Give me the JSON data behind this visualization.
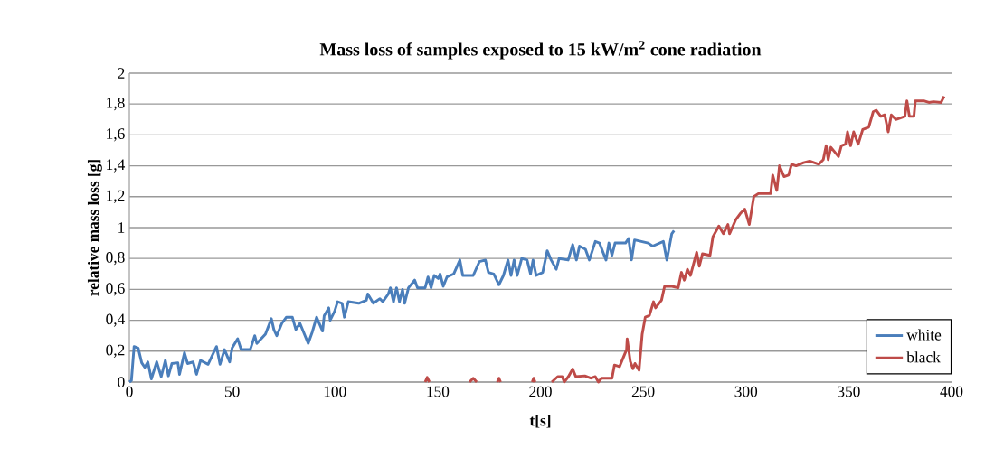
{
  "chart_data": {
    "type": "line",
    "title": "Mass loss of samples exposed to 15 kW/m$^{2}$ cone radiation",
    "xlabel": "t[s]",
    "ylabel": "relative mass loss [g]",
    "xlim": [
      0,
      400
    ],
    "xticks": [
      0,
      50,
      100,
      150,
      200,
      250,
      300,
      350,
      400
    ],
    "ylim": [
      0,
      2
    ],
    "yticks": [
      {
        "value": 0,
        "label": "0"
      },
      {
        "value": 0.2,
        "label": "0,2"
      },
      {
        "value": 0.4,
        "label": "0,4"
      },
      {
        "value": 0.6,
        "label": "0,6"
      },
      {
        "value": 0.8,
        "label": "0,8"
      },
      {
        "value": 1,
        "label": "1"
      },
      {
        "value": 1.2,
        "label": "1,2"
      },
      {
        "value": 1.4,
        "label": "1,4"
      },
      {
        "value": 1.6,
        "label": "1,6"
      },
      {
        "value": 1.8,
        "label": "1,8"
      },
      {
        "value": 2,
        "label": "2"
      }
    ],
    "grid": "y",
    "legend": "bottom right",
    "marker": "none",
    "line_style": "solid",
    "series": [
      {
        "name": "white",
        "color": "#4a7ebb",
        "x": [
          0,
          1,
          2.3,
          4.3,
          6,
          7.5,
          9,
          10.7,
          13.3,
          15.5,
          17.5,
          19,
          20.7,
          23.6,
          24.4,
          26.8,
          28.3,
          31,
          32.7,
          34.6,
          38.3,
          42.4,
          44.1,
          46.3,
          48.8,
          50,
          52.7,
          54.4,
          58.8,
          61,
          62,
          66.2,
          69.1,
          70.3,
          71.7,
          74.2,
          76.4,
          79.3,
          81,
          83,
          87,
          88.9,
          91.1,
          94,
          94.8,
          97,
          97.7,
          99.9,
          101.3,
          103.5,
          104.6,
          106.5,
          111.6,
          115.3,
          116,
          118.7,
          121.9,
          123.3,
          126,
          127,
          128.5,
          130,
          131.4,
          132.9,
          133.9,
          135.8,
          138.8,
          140.2,
          143.9,
          145.3,
          146.8,
          148.3,
          150.3,
          151.2,
          152.7,
          154.5,
          157.8,
          160.8,
          162.2,
          167.3,
          170.3,
          173.2,
          174.7,
          177.3,
          179.8,
          182,
          184.2,
          185.7,
          187.2,
          188.7,
          190.9,
          193.5,
          195.2,
          196.4,
          197.9,
          201.1,
          203.3,
          205.2,
          207.7,
          209.1,
          213.5,
          215.7,
          217.5,
          219,
          221.9,
          223.8,
          226.7,
          228.7,
          231.9,
          233.3,
          234.8,
          236.3,
          241.4,
          242.9,
          244.3,
          245.8,
          252.4,
          254.6,
          259.8,
          261.5,
          263.9,
          265
        ],
        "values": [
          0,
          0.01,
          0.23,
          0.22,
          0.125,
          0.095,
          0.13,
          0.02,
          0.13,
          0.035,
          0.14,
          0.04,
          0.12,
          0.125,
          0.05,
          0.19,
          0.12,
          0.13,
          0.05,
          0.14,
          0.115,
          0.23,
          0.115,
          0.21,
          0.13,
          0.22,
          0.28,
          0.21,
          0.21,
          0.3,
          0.25,
          0.31,
          0.41,
          0.34,
          0.3,
          0.38,
          0.42,
          0.42,
          0.34,
          0.38,
          0.25,
          0.32,
          0.42,
          0.33,
          0.43,
          0.48,
          0.4,
          0.46,
          0.52,
          0.51,
          0.42,
          0.52,
          0.51,
          0.53,
          0.57,
          0.51,
          0.54,
          0.52,
          0.57,
          0.61,
          0.52,
          0.61,
          0.52,
          0.6,
          0.51,
          0.61,
          0.66,
          0.61,
          0.61,
          0.68,
          0.61,
          0.69,
          0.67,
          0.7,
          0.62,
          0.68,
          0.7,
          0.79,
          0.69,
          0.69,
          0.78,
          0.79,
          0.71,
          0.7,
          0.63,
          0.69,
          0.79,
          0.69,
          0.79,
          0.69,
          0.8,
          0.79,
          0.7,
          0.79,
          0.69,
          0.71,
          0.85,
          0.79,
          0.73,
          0.8,
          0.79,
          0.89,
          0.79,
          0.88,
          0.86,
          0.79,
          0.91,
          0.9,
          0.79,
          0.9,
          0.82,
          0.9,
          0.9,
          0.93,
          0.79,
          0.92,
          0.9,
          0.88,
          0.91,
          0.79,
          0.96,
          0.98
        ]
      },
      {
        "name": "black",
        "color": "#be4b48",
        "x": [
          143.9,
          144.9,
          146,
          147,
          165.5,
          167.3,
          169,
          170,
          179,
          179.8,
          180.6,
          181,
          196,
          196.7,
          197.4,
          198,
          205.5,
          208.4,
          210.6,
          211.6,
          213.6,
          215.7,
          217.2,
          221.6,
          224.5,
          226.7,
          228.2,
          229.7,
          234.8,
          236,
          238.5,
          241.9,
          242.2,
          243.7,
          245,
          246,
          248,
          249.5,
          251,
          253,
          255,
          256,
          258.9,
          260.4,
          264,
          267,
          268.6,
          270,
          271.5,
          273,
          276,
          277.3,
          278.8,
          282.5,
          283.9,
          286.8,
          289,
          291.2,
          292,
          295,
          297.2,
          299.4,
          301.6,
          303.8,
          306,
          309,
          312,
          313,
          315,
          316.3,
          318.5,
          320.7,
          322.2,
          324.4,
          328,
          331,
          335.4,
          337.6,
          339,
          340,
          341.3,
          345,
          346.4,
          348.4,
          349.4,
          350.9,
          352.4,
          354.6,
          356.8,
          359.7,
          361.9,
          363.4,
          365.6,
          367.5,
          369.2,
          370.7,
          372.9,
          377.3,
          378.3,
          379.5,
          381.7,
          382.4,
          386.8,
          389,
          391.2,
          394.9,
          396.4
        ],
        "values": [
          0,
          0.03,
          0,
          null,
          0,
          0.025,
          0,
          null,
          0,
          0.025,
          0,
          null,
          0,
          0.025,
          0,
          null,
          0,
          0.035,
          0.035,
          0,
          0.035,
          0.085,
          0.035,
          0.04,
          0.025,
          0.035,
          0,
          0.025,
          0.025,
          0.11,
          0.1,
          0.21,
          0.28,
          0.135,
          0.086,
          0.12,
          0.076,
          0.31,
          0.42,
          0.43,
          0.52,
          0.48,
          0.53,
          0.62,
          0.62,
          0.61,
          0.71,
          0.66,
          0.73,
          0.69,
          0.84,
          0.75,
          0.83,
          0.82,
          0.94,
          1.01,
          0.96,
          1.02,
          0.96,
          1.05,
          1.09,
          1.12,
          1.02,
          1.2,
          1.22,
          1.22,
          1.22,
          1.34,
          1.24,
          1.4,
          1.33,
          1.34,
          1.41,
          1.4,
          1.42,
          1.43,
          1.41,
          1.44,
          1.53,
          1.44,
          1.52,
          1.46,
          1.53,
          1.54,
          1.62,
          1.53,
          1.62,
          1.54,
          1.635,
          1.65,
          1.75,
          1.76,
          1.72,
          1.73,
          1.62,
          1.73,
          1.7,
          1.72,
          1.82,
          1.72,
          1.72,
          1.82,
          1.82,
          1.81,
          1.815,
          1.81,
          1.85
        ]
      }
    ]
  }
}
